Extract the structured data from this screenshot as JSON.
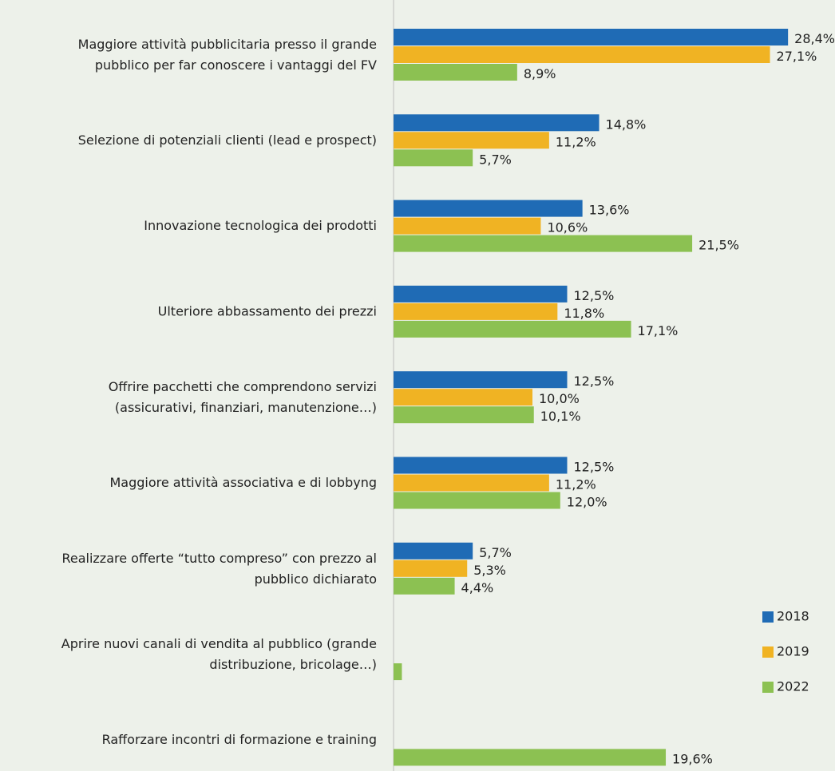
{
  "chart_data": {
    "type": "bar",
    "orientation": "horizontal",
    "categories": [
      "Maggiore attività pubblicitaria presso il grande\npubblico per far conoscere i vantaggi del FV",
      "Selezione di potenziali clienti (lead e prospect)",
      "Innovazione tecnologica dei prodotti",
      "Ulteriore abbassamento dei prezzi",
      "Offrire pacchetti che comprendono servizi\n(assicurativi, finanziari, manutenzione…)",
      "Maggiore attività associativa e di lobbyng",
      "Realizzare offerte “tutto compreso” con prezzo al\npubblico dichiarato",
      "Aprire nuovi canali di vendita al pubblico (grande\ndistribuzione, bricolage…)",
      "Rafforzare incontri di formazione e training"
    ],
    "series": [
      {
        "name": "2018",
        "color": "#1f6bb5",
        "values": [
          28.4,
          14.8,
          13.6,
          12.5,
          12.5,
          12.5,
          5.7,
          null,
          null
        ],
        "value_labels": [
          "28,4%",
          "14,8%",
          "13,6%",
          "12,5%",
          "12,5%",
          "12,5%",
          "5,7%",
          null,
          null
        ]
      },
      {
        "name": "2019",
        "color": "#f0b323",
        "values": [
          27.1,
          11.2,
          10.6,
          11.8,
          10.0,
          11.2,
          5.3,
          null,
          null
        ],
        "value_labels": [
          "27,1%",
          "11,2%",
          "10,6%",
          "11,8%",
          "10,0%",
          "11,2%",
          "5,3%",
          null,
          null
        ]
      },
      {
        "name": "2022",
        "color": "#8cc152",
        "values": [
          8.9,
          5.7,
          21.5,
          17.1,
          10.1,
          12.0,
          4.4,
          0.6,
          19.6
        ],
        "value_labels": [
          "8,9%",
          "5,7%",
          "21,5%",
          "17,1%",
          "10,1%",
          "12,0%",
          "4,4%",
          null,
          "19,6%"
        ]
      }
    ],
    "xlim": [
      0,
      30
    ],
    "legend": "right"
  }
}
